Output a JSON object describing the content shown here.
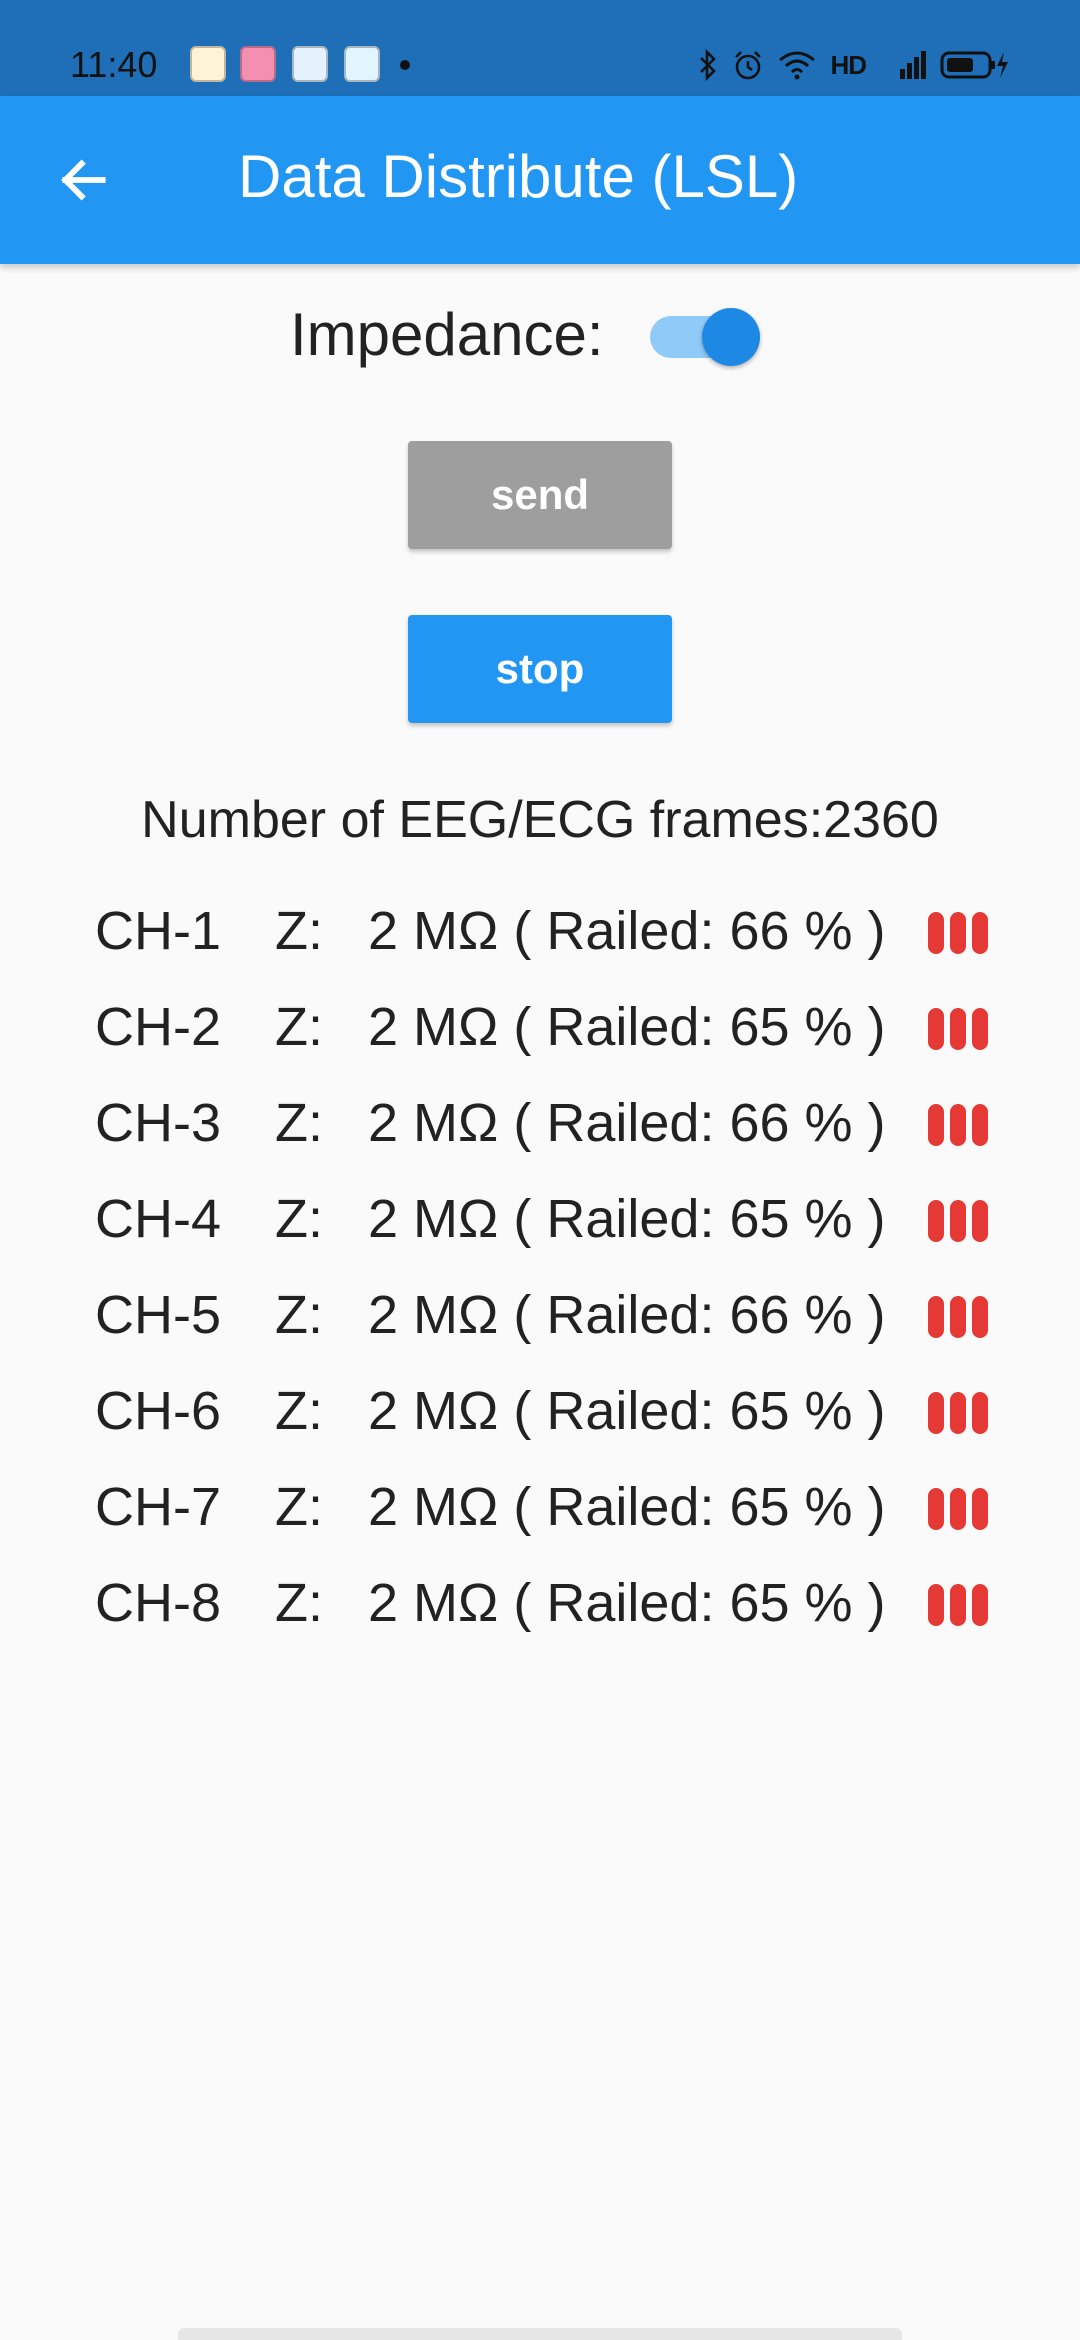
{
  "status_bar": {
    "time": "11:40",
    "network_label": "HD",
    "network_type": "4G",
    "notification_icons": [
      "app-duck-icon",
      "bilibili-icon",
      "edge-browser-icon",
      "chat-icon"
    ],
    "notification_colors": [
      "#FFB300",
      "#E040FB",
      "#1565C0",
      "#29B6F6"
    ]
  },
  "app_bar": {
    "title": "Data Distribute (LSL)",
    "color": "#2196F3"
  },
  "impedance": {
    "label": "Impedance:",
    "enabled": true
  },
  "buttons": {
    "send_label": "send",
    "stop_label": "stop"
  },
  "frames": {
    "text": "Number of EEG/ECG frames:2360"
  },
  "channels": [
    {
      "name": "CH-1",
      "z_label": "Z:",
      "value": "2 MΩ ( Railed: 66 % )"
    },
    {
      "name": "CH-2",
      "z_label": "Z:",
      "value": "2 MΩ ( Railed: 65 % )"
    },
    {
      "name": "CH-3",
      "z_label": "Z:",
      "value": "2 MΩ ( Railed: 66 % )"
    },
    {
      "name": "CH-4",
      "z_label": "Z:",
      "value": "2 MΩ ( Railed: 65 % )"
    },
    {
      "name": "CH-5",
      "z_label": "Z:",
      "value": "2 MΩ ( Railed: 66 % )"
    },
    {
      "name": "CH-6",
      "z_label": "Z:",
      "value": "2 MΩ ( Railed: 65 % )"
    },
    {
      "name": "CH-7",
      "z_label": "Z:",
      "value": "2 MΩ ( Railed: 65 % )"
    },
    {
      "name": "CH-8",
      "z_label": "Z:",
      "value": "2 MΩ ( Railed: 65 % )"
    }
  ],
  "signal_color": "#E53935"
}
